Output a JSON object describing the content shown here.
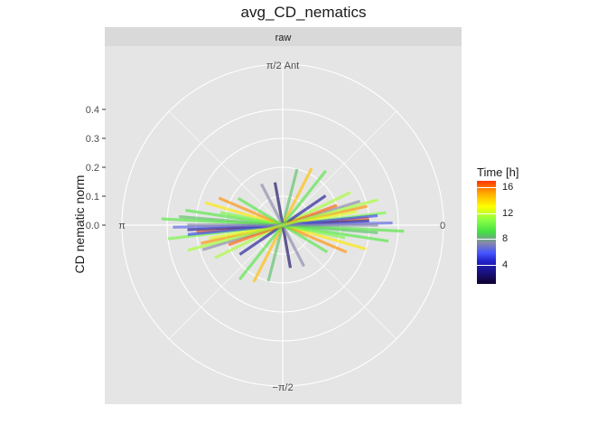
{
  "chart_data": {
    "type": "polar-segments",
    "title": "avg_CD_nematics",
    "facet_label": "raw",
    "ylabel": "CD nematic norm",
    "radial_ticks": [
      "0.0",
      "0.1",
      "0.2",
      "0.3",
      "0.4"
    ],
    "radial_tick_values": [
      0.0,
      0.1,
      0.2,
      0.3,
      0.4
    ],
    "rlim": [
      0,
      0.5
    ],
    "angle_labels": {
      "0": "0",
      "pi_over_2": "π/2 Ant",
      "pi": "π",
      "minus_pi_over_2": "−π/2"
    },
    "legend": {
      "title": "Time [h]",
      "ticks": [
        "4",
        "8",
        "12",
        "16"
      ],
      "tick_values": [
        4,
        8,
        12,
        16
      ],
      "range": [
        1,
        17
      ]
    },
    "grid": true,
    "segments": [
      {
        "angle": 0.08,
        "r": 0.3,
        "time": 16
      },
      {
        "angle": 3.22,
        "r": 0.3,
        "time": 16
      },
      {
        "angle": 0.12,
        "r": 0.36,
        "time": 10
      },
      {
        "angle": 3.26,
        "r": 0.4,
        "time": 10
      },
      {
        "angle": -0.08,
        "r": 0.33,
        "time": 8
      },
      {
        "angle": 3.06,
        "r": 0.36,
        "time": 8
      },
      {
        "angle": 0.05,
        "r": 0.3,
        "time": 3
      },
      {
        "angle": 3.19,
        "r": 0.33,
        "time": 3
      },
      {
        "angle": 0.22,
        "r": 0.3,
        "time": 15
      },
      {
        "angle": 3.36,
        "r": 0.29,
        "time": 15
      },
      {
        "angle": -0.15,
        "r": 0.37,
        "time": 9
      },
      {
        "angle": 2.99,
        "r": 0.34,
        "time": 9
      },
      {
        "angle": 0.3,
        "r": 0.28,
        "time": 7
      },
      {
        "angle": 3.44,
        "r": 0.29,
        "time": 7
      },
      {
        "angle": 0.02,
        "r": 0.38,
        "time": 6
      },
      {
        "angle": 3.16,
        "r": 0.38,
        "time": 6
      },
      {
        "angle": 0.45,
        "r": 0.26,
        "time": 11
      },
      {
        "angle": 3.59,
        "r": 0.26,
        "time": 11
      },
      {
        "angle": -0.28,
        "r": 0.3,
        "time": 13
      },
      {
        "angle": 2.86,
        "r": 0.28,
        "time": 13
      },
      {
        "angle": 1.32,
        "r": 0.2,
        "time": 8
      },
      {
        "angle": 4.46,
        "r": 0.2,
        "time": 8
      },
      {
        "angle": 1.1,
        "r": 0.22,
        "time": 14
      },
      {
        "angle": 4.24,
        "r": 0.22,
        "time": 14
      },
      {
        "angle": 1.75,
        "r": 0.15,
        "time": 2
      },
      {
        "angle": 4.89,
        "r": 0.15,
        "time": 2
      },
      {
        "angle": 0.6,
        "r": 0.18,
        "time": 3
      },
      {
        "angle": 3.74,
        "r": 0.18,
        "time": 3
      },
      {
        "angle": 2.05,
        "r": 0.16,
        "time": 7
      },
      {
        "angle": 5.19,
        "r": 0.16,
        "time": 7
      },
      {
        "angle": 0.9,
        "r": 0.24,
        "time": 9
      },
      {
        "angle": 4.04,
        "r": 0.24,
        "time": 9
      },
      {
        "angle": -0.4,
        "r": 0.24,
        "time": 15
      },
      {
        "angle": 2.74,
        "r": 0.24,
        "time": 15
      },
      {
        "angle": 0.18,
        "r": 0.26,
        "time": 12
      },
      {
        "angle": 3.32,
        "r": 0.26,
        "time": 12
      },
      {
        "angle": -0.05,
        "r": 0.42,
        "time": 9
      },
      {
        "angle": 3.09,
        "r": 0.42,
        "time": 9
      },
      {
        "angle": 0.1,
        "r": 0.33,
        "time": 5
      },
      {
        "angle": 3.24,
        "r": 0.33,
        "time": 5
      },
      {
        "angle": -0.2,
        "r": 0.22,
        "time": 10
      },
      {
        "angle": 2.94,
        "r": 0.22,
        "time": 10
      },
      {
        "angle": 0.35,
        "r": 0.2,
        "time": 16
      },
      {
        "angle": 3.49,
        "r": 0.2,
        "time": 16
      },
      {
        "angle": 2.6,
        "r": 0.18,
        "time": 9
      },
      {
        "angle": 5.74,
        "r": 0.18,
        "time": 9
      },
      {
        "angle": 0.0,
        "r": 0.33,
        "time": 7
      },
      {
        "angle": 3.14,
        "r": 0.33,
        "time": 7
      },
      {
        "angle": 0.26,
        "r": 0.34,
        "time": 11
      },
      {
        "angle": 3.4,
        "r": 0.34,
        "time": 11
      }
    ]
  }
}
